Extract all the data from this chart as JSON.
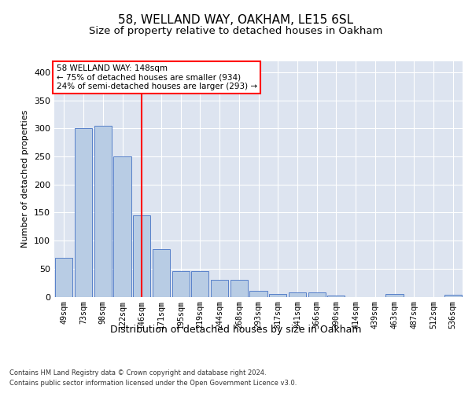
{
  "title1": "58, WELLAND WAY, OAKHAM, LE15 6SL",
  "title2": "Size of property relative to detached houses in Oakham",
  "xlabel": "Distribution of detached houses by size in Oakham",
  "ylabel": "Number of detached properties",
  "footnote1": "Contains HM Land Registry data © Crown copyright and database right 2024.",
  "footnote2": "Contains public sector information licensed under the Open Government Licence v3.0.",
  "categories": [
    "49sqm",
    "73sqm",
    "98sqm",
    "122sqm",
    "146sqm",
    "171sqm",
    "195sqm",
    "219sqm",
    "244sqm",
    "268sqm",
    "293sqm",
    "317sqm",
    "341sqm",
    "366sqm",
    "390sqm",
    "414sqm",
    "439sqm",
    "463sqm",
    "487sqm",
    "512sqm",
    "536sqm"
  ],
  "values": [
    70,
    300,
    305,
    250,
    145,
    85,
    45,
    45,
    30,
    30,
    10,
    5,
    8,
    8,
    2,
    0,
    0,
    5,
    0,
    0,
    3
  ],
  "bar_color": "#b8cce4",
  "bar_edge_color": "#4472c4",
  "red_line_index": 4,
  "annotation_title": "58 WELLAND WAY: 148sqm",
  "annotation_line1": "← 75% of detached houses are smaller (934)",
  "annotation_line2": "24% of semi-detached houses are larger (293) →",
  "ylim": [
    0,
    420
  ],
  "yticks": [
    0,
    50,
    100,
    150,
    200,
    250,
    300,
    350,
    400
  ],
  "background_color": "#ffffff",
  "plot_bg_color": "#dde4f0",
  "grid_color": "#ffffff",
  "title1_fontsize": 11,
  "title2_fontsize": 9.5
}
